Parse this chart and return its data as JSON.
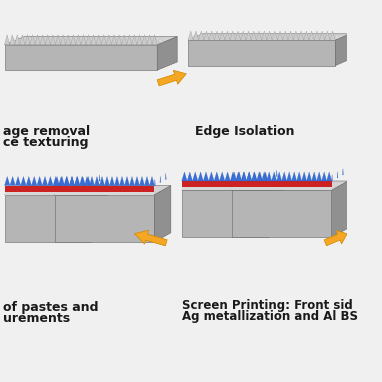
{
  "bg_color": "#f0f0f0",
  "label_color": "#1a1a1a",
  "arrow_color": "#f5a623",
  "body_color": "#b8b8b8",
  "top_color": "#d0d0d0",
  "side_color": "#959595",
  "tooth_color": "#cccccc",
  "tooth_edge": "#888888",
  "blue_spike": "#3366cc",
  "blue_spike_edge": "#2255aa",
  "red_layer": "#cc2222",
  "white_layer": "#dddddd",
  "label_fontsize": 9.0,
  "labels": {
    "top_left_1": "age removal",
    "top_left_2": "ce texturing",
    "top_right": "Edge Isolation",
    "bottom_left_1": "of pastes and",
    "bottom_left_2": "urements",
    "bottom_right_1": "Screen Printing: Front sid",
    "bottom_right_2": "Ag metallization and Al BS"
  }
}
